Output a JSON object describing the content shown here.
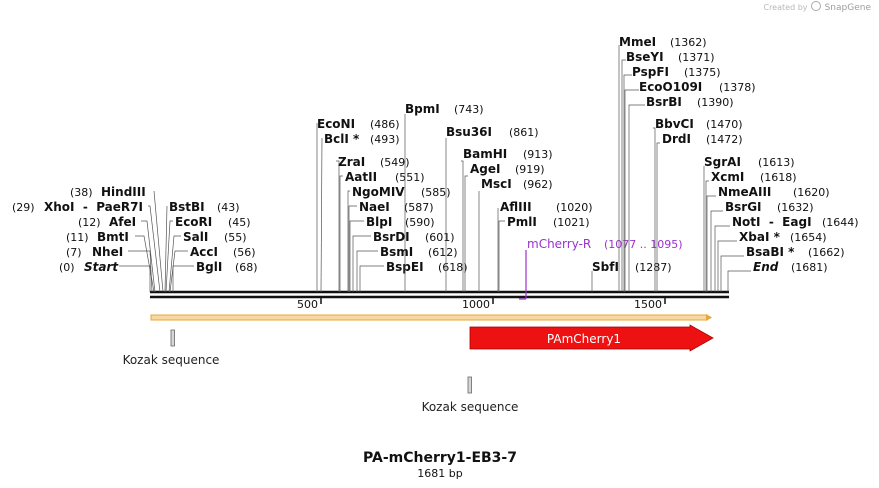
{
  "credit": {
    "created_by": "Created by",
    "brand": "SnapGene"
  },
  "title": "PA-mCherry1-EB3-7",
  "subtitle": "1681 bp",
  "colors": {
    "primer": "#9932cc",
    "feature": "#ee0000",
    "backbone": "#e8a53a",
    "kozak": "#999999"
  },
  "sites_left": [
    {
      "name": "Start",
      "pos": "(0)",
      "italic": true
    },
    {
      "name": "NheI",
      "pos": "(7)"
    },
    {
      "name": "BmtI",
      "pos": "(11)"
    },
    {
      "name": "AfeI",
      "pos": "(12)"
    },
    {
      "name": "XhoI  -  PaeR7I",
      "pos": "(29)"
    },
    {
      "name": "HindIII",
      "pos": "(38)"
    }
  ],
  "sites_mid": [
    {
      "name": "BglI",
      "pos": "(68)"
    },
    {
      "name": "AccI",
      "pos": "(56)"
    },
    {
      "name": "SalI",
      "pos": "(55)"
    },
    {
      "name": "EcoRI",
      "pos": "(45)"
    },
    {
      "name": "BstBI",
      "pos": "(43)"
    },
    {
      "name": "BspEI",
      "pos": "(618)"
    },
    {
      "name": "BsmI",
      "pos": "(612)"
    },
    {
      "name": "BsrDI",
      "pos": "(601)"
    },
    {
      "name": "BlpI",
      "pos": "(590)"
    },
    {
      "name": "NaeI",
      "pos": "(587)"
    },
    {
      "name": "NgoMIV",
      "pos": "(585)"
    },
    {
      "name": "AatII",
      "pos": "(551)"
    },
    {
      "name": "ZraI",
      "pos": "(549)"
    },
    {
      "name": "BclI *",
      "pos": "(493)"
    },
    {
      "name": "EcoNI",
      "pos": "(486)"
    },
    {
      "name": "BpmI",
      "pos": "(743)"
    },
    {
      "name": "Bsu36I",
      "pos": "(861)"
    },
    {
      "name": "BamHI",
      "pos": "(913)"
    },
    {
      "name": "AgeI",
      "pos": "(919)"
    },
    {
      "name": "MscI",
      "pos": "(962)"
    },
    {
      "name": "AflIII",
      "pos": "(1020)"
    },
    {
      "name": "PmlI",
      "pos": "(1021)"
    },
    {
      "name": "SbfI",
      "pos": "(1287)"
    },
    {
      "name": "MmeI",
      "pos": "(1362)"
    },
    {
      "name": "BseYI",
      "pos": "(1371)"
    },
    {
      "name": "PspFI",
      "pos": "(1375)"
    },
    {
      "name": "EcoO109I",
      "pos": "(1378)"
    },
    {
      "name": "BsrBI",
      "pos": "(1390)"
    },
    {
      "name": "BbvCI",
      "pos": "(1470)"
    },
    {
      "name": "DrdI",
      "pos": "(1472)"
    },
    {
      "name": "SgrAI",
      "pos": "(1613)"
    },
    {
      "name": "XcmI",
      "pos": "(1618)"
    },
    {
      "name": "NmeAIII",
      "pos": "(1620)"
    },
    {
      "name": "BsrGI",
      "pos": "(1632)"
    },
    {
      "name": "NotI  -  EagI",
      "pos": "(1644)"
    },
    {
      "name": "XbaI *",
      "pos": "(1654)"
    },
    {
      "name": "BsaBI *",
      "pos": "(1662)"
    },
    {
      "name": "End",
      "pos": "(1681)",
      "italic": true
    }
  ],
  "primer": {
    "name": "mCherry-R",
    "range": "(1077 .. 1095)"
  },
  "ticks": [
    "500",
    "1000",
    "1500"
  ],
  "features": {
    "cds": "PAmCherry1",
    "kozak1": "Kozak sequence",
    "kozak2": "Kozak sequence"
  }
}
